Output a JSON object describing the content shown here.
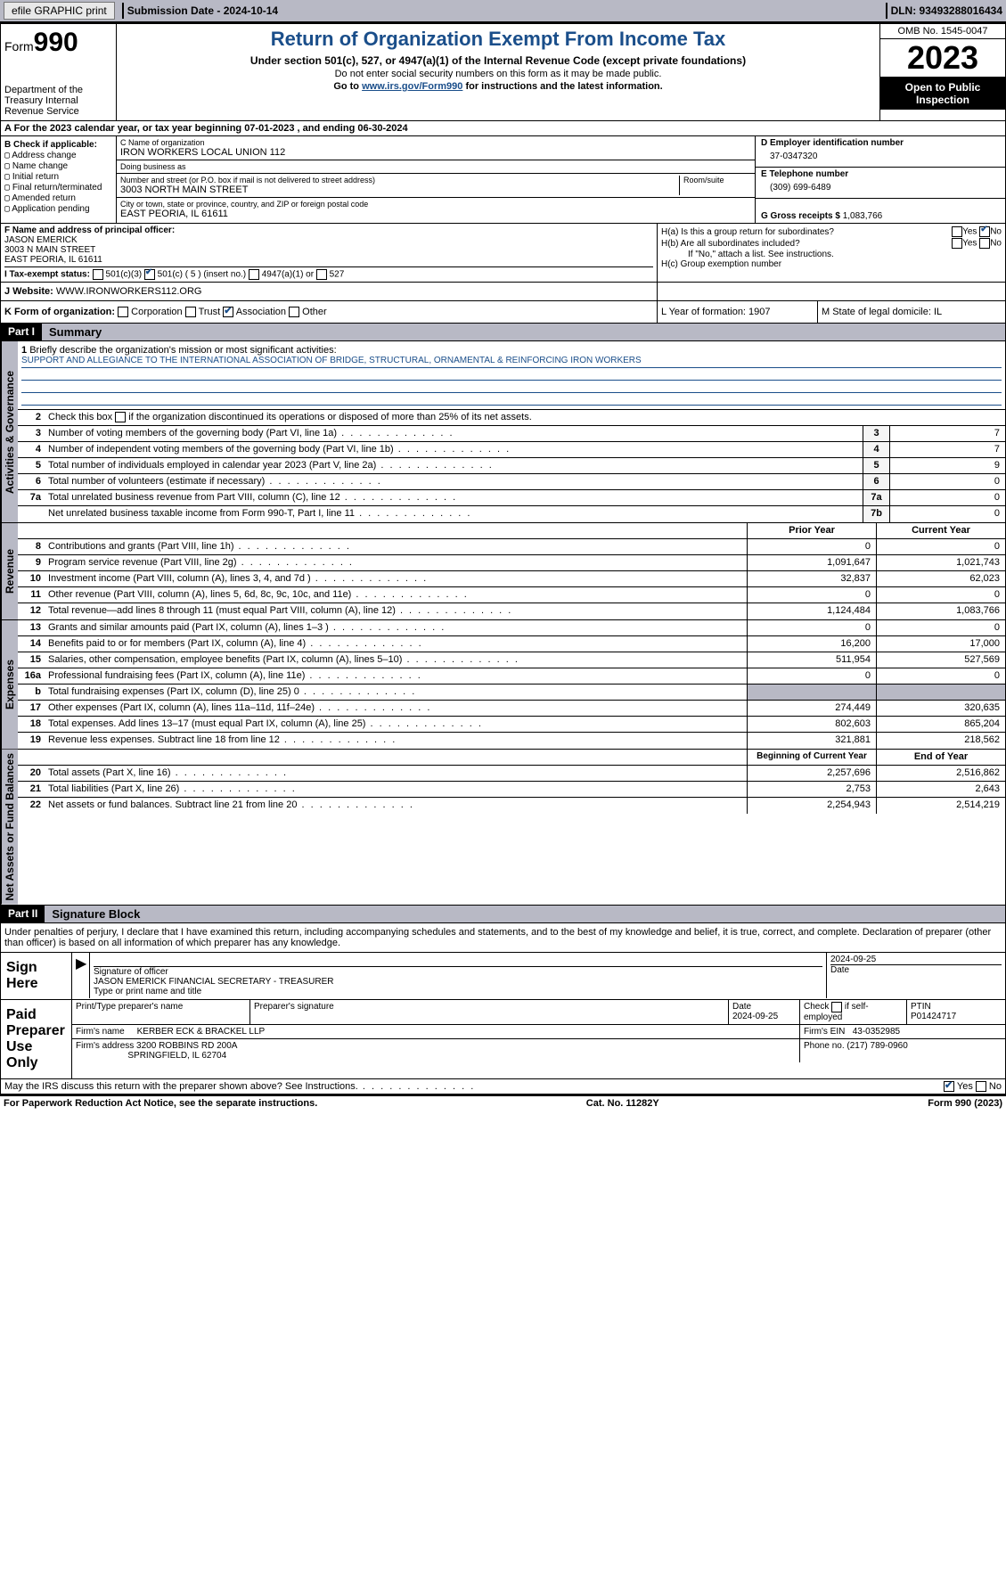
{
  "topbar": {
    "efile": "efile GRAPHIC print",
    "submission_label": "Submission Date - 2024-10-14",
    "dln": "DLN: 93493288016434"
  },
  "header": {
    "form_prefix": "Form",
    "form_no": "990",
    "dept": "Department of the Treasury Internal Revenue Service",
    "title": "Return of Organization Exempt From Income Tax",
    "sub": "Under section 501(c), 527, or 4947(a)(1) of the Internal Revenue Code (except private foundations)",
    "ssn_note": "Do not enter social security numbers on this form as it may be made public.",
    "goto": "Go to ",
    "goto_link": "www.irs.gov/Form990",
    "goto_after": " for instructions and the latest information.",
    "omb": "OMB No. 1545-0047",
    "year": "2023",
    "open": "Open to Public Inspection"
  },
  "row_a": "A For the 2023 calendar year, or tax year beginning 07-01-2023   , and ending 06-30-2024",
  "box_b": {
    "title": "B Check if applicable:",
    "items": [
      "Address change",
      "Name change",
      "Initial return",
      "Final return/terminated",
      "Amended return",
      "Application pending"
    ]
  },
  "box_c": {
    "name_lbl": "C Name of organization",
    "name": "IRON WORKERS LOCAL UNION 112",
    "dba_lbl": "Doing business as",
    "dba": "",
    "street_lbl": "Number and street (or P.O. box if mail is not delivered to street address)",
    "room_lbl": "Room/suite",
    "street": "3003 NORTH MAIN STREET",
    "city_lbl": "City or town, state or province, country, and ZIP or foreign postal code",
    "city": "EAST PEORIA, IL  61611"
  },
  "box_de": {
    "d_lbl": "D Employer identification number",
    "ein": "37-0347320",
    "e_lbl": "E Telephone number",
    "phone": "(309) 699-6489",
    "g_lbl": "G Gross receipts $ ",
    "g_val": "1,083,766"
  },
  "box_f": {
    "lbl": "F  Name and address of principal officer:",
    "name": "JASON EMERICK",
    "street": "3003 N MAIN STREET",
    "city": "EAST PEORIA, IL  61611"
  },
  "box_h": {
    "a": "H(a)  Is this a group return for subordinates?",
    "b": "H(b)  Are all subordinates included?",
    "b_note": "If \"No,\" attach a list. See instructions.",
    "c": "H(c)  Group exemption number"
  },
  "row_i": {
    "lbl": "I   Tax-exempt status:",
    "opts": [
      "501(c)(3)",
      "501(c) ( 5 ) (insert no.)",
      "4947(a)(1) or",
      "527"
    ],
    "checked_idx": 1
  },
  "row_j": {
    "lbl": "J   Website:",
    "val": " WWW.IRONWORKERS112.ORG"
  },
  "row_k": {
    "lbl": "K Form of organization:",
    "opts": [
      "Corporation",
      "Trust",
      "Association",
      "Other"
    ],
    "checked_idx": 2,
    "l": "L Year of formation: 1907",
    "m": "M State of legal domicile: IL"
  },
  "part1": {
    "hdr": "Part I",
    "title": "Summary",
    "mission_lbl": "Briefly describe the organization's mission or most significant activities:",
    "mission": "SUPPORT AND ALLEGIANCE TO THE INTERNATIONAL ASSOCIATION OF BRIDGE, STRUCTURAL, ORNAMENTAL & REINFORCING IRON WORKERS",
    "line2": "Check this box      if the organization discontinued its operations or disposed of more than 25% of its net assets.",
    "gov_hdr": "Activities & Governance",
    "rev_hdr": "Revenue",
    "exp_hdr": "Expenses",
    "net_hdr": "Net Assets or Fund Balances",
    "rows_gov": [
      {
        "n": "3",
        "d": "Number of voting members of the governing body (Part VI, line 1a)",
        "k": "3",
        "v": "7"
      },
      {
        "n": "4",
        "d": "Number of independent voting members of the governing body (Part VI, line 1b)",
        "k": "4",
        "v": "7"
      },
      {
        "n": "5",
        "d": "Total number of individuals employed in calendar year 2023 (Part V, line 2a)",
        "k": "5",
        "v": "9"
      },
      {
        "n": "6",
        "d": "Total number of volunteers (estimate if necessary)",
        "k": "6",
        "v": "0"
      },
      {
        "n": "7a",
        "d": "Total unrelated business revenue from Part VIII, column (C), line 12",
        "k": "7a",
        "v": "0"
      },
      {
        "n": "",
        "d": "Net unrelated business taxable income from Form 990-T, Part I, line 11",
        "k": "7b",
        "v": "0"
      }
    ],
    "col_prior": "Prior Year",
    "col_curr": "Current Year",
    "rows_rev": [
      {
        "n": "8",
        "d": "Contributions and grants (Part VIII, line 1h)",
        "p": "0",
        "c": "0"
      },
      {
        "n": "9",
        "d": "Program service revenue (Part VIII, line 2g)",
        "p": "1,091,647",
        "c": "1,021,743"
      },
      {
        "n": "10",
        "d": "Investment income (Part VIII, column (A), lines 3, 4, and 7d )",
        "p": "32,837",
        "c": "62,023"
      },
      {
        "n": "11",
        "d": "Other revenue (Part VIII, column (A), lines 5, 6d, 8c, 9c, 10c, and 11e)",
        "p": "0",
        "c": "0"
      },
      {
        "n": "12",
        "d": "Total revenue—add lines 8 through 11 (must equal Part VIII, column (A), line 12)",
        "p": "1,124,484",
        "c": "1,083,766"
      }
    ],
    "rows_exp": [
      {
        "n": "13",
        "d": "Grants and similar amounts paid (Part IX, column (A), lines 1–3 )",
        "p": "0",
        "c": "0"
      },
      {
        "n": "14",
        "d": "Benefits paid to or for members (Part IX, column (A), line 4)",
        "p": "16,200",
        "c": "17,000"
      },
      {
        "n": "15",
        "d": "Salaries, other compensation, employee benefits (Part IX, column (A), lines 5–10)",
        "p": "511,954",
        "c": "527,569"
      },
      {
        "n": "16a",
        "d": "Professional fundraising fees (Part IX, column (A), line 11e)",
        "p": "0",
        "c": "0"
      },
      {
        "n": "b",
        "d": "Total fundraising expenses (Part IX, column (D), line 25) 0",
        "p": "",
        "c": "",
        "grey": true
      },
      {
        "n": "17",
        "d": "Other expenses (Part IX, column (A), lines 11a–11d, 11f–24e)",
        "p": "274,449",
        "c": "320,635"
      },
      {
        "n": "18",
        "d": "Total expenses. Add lines 13–17 (must equal Part IX, column (A), line 25)",
        "p": "802,603",
        "c": "865,204"
      },
      {
        "n": "19",
        "d": "Revenue less expenses. Subtract line 18 from line 12",
        "p": "321,881",
        "c": "218,562"
      }
    ],
    "col_begin": "Beginning of Current Year",
    "col_end": "End of Year",
    "rows_net": [
      {
        "n": "20",
        "d": "Total assets (Part X, line 16)",
        "p": "2,257,696",
        "c": "2,516,862"
      },
      {
        "n": "21",
        "d": "Total liabilities (Part X, line 26)",
        "p": "2,753",
        "c": "2,643"
      },
      {
        "n": "22",
        "d": "Net assets or fund balances. Subtract line 21 from line 20",
        "p": "2,254,943",
        "c": "2,514,219"
      }
    ]
  },
  "part2": {
    "hdr": "Part II",
    "title": "Signature Block",
    "decl": "Under penalties of perjury, I declare that I have examined this return, including accompanying schedules and statements, and to the best of my knowledge and belief, it is true, correct, and complete. Declaration of preparer (other than officer) is based on all information of which preparer has any knowledge."
  },
  "sign": {
    "here": "Sign Here",
    "sig_lbl": "Signature of officer",
    "date_lbl": "Date",
    "date_top": "2024-09-25",
    "officer": "JASON EMERICK  FINANCIAL SECRETARY - TREASURER",
    "type_lbl": "Type or print name and title"
  },
  "paid": {
    "title": "Paid Preparer Use Only",
    "print_lbl": "Print/Type preparer's name",
    "sig_lbl": "Preparer's signature",
    "date_lbl": "Date",
    "date": "2024-09-25",
    "check_lbl": "Check        if self-employed",
    "ptin_lbl": "PTIN",
    "ptin": "P01424717",
    "firm_name_lbl": "Firm's name",
    "firm_name": "KERBER ECK & BRACKEL LLP",
    "firm_ein_lbl": "Firm's EIN",
    "firm_ein": "43-0352985",
    "firm_addr_lbl": "Firm's address",
    "firm_addr1": "3200 ROBBINS RD 200A",
    "firm_addr2": "SPRINGFIELD, IL  62704",
    "phone_lbl": "Phone no.",
    "phone": "(217) 789-0960"
  },
  "discuss": "May the IRS discuss this return with the preparer shown above? See Instructions.",
  "footer": {
    "left": "For Paperwork Reduction Act Notice, see the separate instructions.",
    "mid": "Cat. No. 11282Y",
    "right": "Form 990 (2023)"
  }
}
